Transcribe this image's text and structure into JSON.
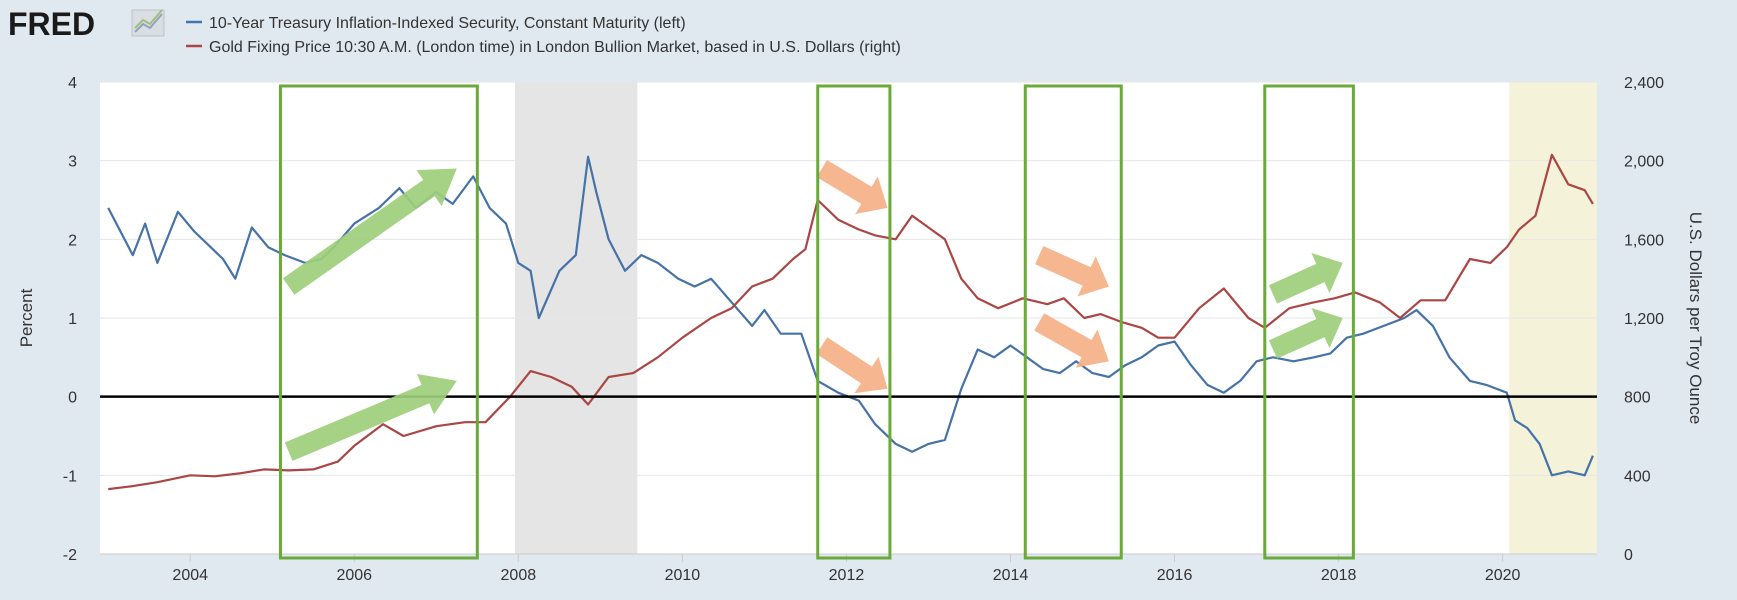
{
  "header": {
    "logo_text": "FRED",
    "legend": [
      {
        "label": "10-Year Treasury Inflation-Indexed Security, Constant Maturity (left)",
        "color": "#4572a7"
      },
      {
        "label": "Gold Fixing Price 10:30 A.M. (London time) in London Bullion Market, based in U.S. Dollars (right)",
        "color": "#aa4643"
      }
    ]
  },
  "chart_data": {
    "type": "line",
    "x_range": [
      2002.9,
      2021.15
    ],
    "x_ticks": [
      2004,
      2006,
      2008,
      2010,
      2012,
      2014,
      2016,
      2018,
      2020
    ],
    "left_axis": {
      "label": "Percent",
      "range": [
        -2,
        4
      ],
      "ticks": [
        -2,
        -1,
        0,
        1,
        2,
        3,
        4
      ]
    },
    "right_axis": {
      "label": "U.S. Dollars per Troy Ounce",
      "range": [
        0,
        2400
      ],
      "ticks": [
        0,
        400,
        800,
        1200,
        1600,
        2000,
        2400
      ],
      "tick_labels": [
        "0",
        "400",
        "800",
        "1,200",
        "1,600",
        "2,000",
        "2,400"
      ]
    },
    "zero_line": 0,
    "shaded_regions": [
      {
        "name": "recession-2008",
        "from": 2007.96,
        "to": 2009.45,
        "color": "#e5e5e5"
      },
      {
        "name": "recession-2020",
        "from": 2020.08,
        "to": 2021.15,
        "color": "#f4f3da"
      }
    ],
    "annotations": {
      "boxes": [
        {
          "from": 2005.1,
          "to": 2007.5,
          "color": "#6aaa3a"
        },
        {
          "from": 2011.65,
          "to": 2012.53,
          "color": "#6aaa3a"
        },
        {
          "from": 2014.18,
          "to": 2015.35,
          "color": "#6aaa3a"
        },
        {
          "from": 2017.1,
          "to": 2018.18,
          "color": "#6aaa3a"
        }
      ],
      "arrows": [
        {
          "from": [
            2005.2,
            1.4
          ],
          "to": [
            2007.25,
            2.9
          ],
          "color": "#9dce7b"
        },
        {
          "from": [
            2005.2,
            -0.7
          ],
          "to": [
            2007.25,
            0.2
          ],
          "color": "#9dce7b"
        },
        {
          "from": [
            2011.7,
            2.9
          ],
          "to": [
            2012.5,
            2.4
          ],
          "color": "#f5b087"
        },
        {
          "from": [
            2011.7,
            0.65
          ],
          "to": [
            2012.5,
            0.1
          ],
          "color": "#f5b087"
        },
        {
          "from": [
            2014.35,
            1.8
          ],
          "to": [
            2015.2,
            1.4
          ],
          "color": "#f5b087"
        },
        {
          "from": [
            2014.35,
            0.95
          ],
          "to": [
            2015.2,
            0.45
          ],
          "color": "#f5b087"
        },
        {
          "from": [
            2017.2,
            1.3
          ],
          "to": [
            2018.05,
            1.7
          ],
          "color": "#9dce7b"
        },
        {
          "from": [
            2017.2,
            0.6
          ],
          "to": [
            2018.05,
            1.0
          ],
          "color": "#9dce7b"
        }
      ]
    },
    "series": [
      {
        "name": "10-Year Treasury Inflation-Indexed Security, Constant Maturity",
        "axis": "left",
        "color": "#4572a7",
        "points": [
          [
            2003.0,
            2.4
          ],
          [
            2003.15,
            2.1
          ],
          [
            2003.3,
            1.8
          ],
          [
            2003.45,
            2.2
          ],
          [
            2003.6,
            1.7
          ],
          [
            2003.85,
            2.35
          ],
          [
            2004.05,
            2.1
          ],
          [
            2004.25,
            1.9
          ],
          [
            2004.4,
            1.75
          ],
          [
            2004.55,
            1.5
          ],
          [
            2004.75,
            2.15
          ],
          [
            2004.95,
            1.9
          ],
          [
            2005.15,
            1.8
          ],
          [
            2005.4,
            1.7
          ],
          [
            2005.6,
            1.75
          ],
          [
            2005.75,
            1.9
          ],
          [
            2006.0,
            2.2
          ],
          [
            2006.3,
            2.4
          ],
          [
            2006.55,
            2.65
          ],
          [
            2006.75,
            2.4
          ],
          [
            2007.0,
            2.6
          ],
          [
            2007.2,
            2.45
          ],
          [
            2007.45,
            2.8
          ],
          [
            2007.65,
            2.4
          ],
          [
            2007.85,
            2.2
          ],
          [
            2008.0,
            1.7
          ],
          [
            2008.15,
            1.6
          ],
          [
            2008.25,
            1.0
          ],
          [
            2008.5,
            1.6
          ],
          [
            2008.7,
            1.8
          ],
          [
            2008.85,
            3.05
          ],
          [
            2008.95,
            2.6
          ],
          [
            2009.1,
            2.0
          ],
          [
            2009.3,
            1.6
          ],
          [
            2009.5,
            1.8
          ],
          [
            2009.7,
            1.7
          ],
          [
            2009.95,
            1.5
          ],
          [
            2010.15,
            1.4
          ],
          [
            2010.35,
            1.5
          ],
          [
            2010.6,
            1.2
          ],
          [
            2010.85,
            0.9
          ],
          [
            2011.0,
            1.1
          ],
          [
            2011.2,
            0.8
          ],
          [
            2011.45,
            0.8
          ],
          [
            2011.65,
            0.2
          ],
          [
            2011.9,
            0.05
          ],
          [
            2012.15,
            -0.05
          ],
          [
            2012.35,
            -0.35
          ],
          [
            2012.6,
            -0.6
          ],
          [
            2012.8,
            -0.7
          ],
          [
            2013.0,
            -0.6
          ],
          [
            2013.2,
            -0.55
          ],
          [
            2013.4,
            0.1
          ],
          [
            2013.6,
            0.6
          ],
          [
            2013.8,
            0.5
          ],
          [
            2014.0,
            0.65
          ],
          [
            2014.2,
            0.5
          ],
          [
            2014.4,
            0.35
          ],
          [
            2014.6,
            0.3
          ],
          [
            2014.8,
            0.45
          ],
          [
            2015.0,
            0.3
          ],
          [
            2015.2,
            0.25
          ],
          [
            2015.4,
            0.4
          ],
          [
            2015.6,
            0.5
          ],
          [
            2015.8,
            0.65
          ],
          [
            2016.0,
            0.7
          ],
          [
            2016.2,
            0.4
          ],
          [
            2016.4,
            0.15
          ],
          [
            2016.6,
            0.05
          ],
          [
            2016.8,
            0.2
          ],
          [
            2017.0,
            0.45
          ],
          [
            2017.2,
            0.5
          ],
          [
            2017.45,
            0.45
          ],
          [
            2017.7,
            0.5
          ],
          [
            2017.9,
            0.55
          ],
          [
            2018.1,
            0.75
          ],
          [
            2018.3,
            0.8
          ],
          [
            2018.55,
            0.9
          ],
          [
            2018.8,
            1.0
          ],
          [
            2018.95,
            1.1
          ],
          [
            2019.15,
            0.9
          ],
          [
            2019.35,
            0.5
          ],
          [
            2019.6,
            0.2
          ],
          [
            2019.8,
            0.15
          ],
          [
            2020.05,
            0.05
          ],
          [
            2020.15,
            -0.3
          ],
          [
            2020.3,
            -0.4
          ],
          [
            2020.45,
            -0.6
          ],
          [
            2020.6,
            -1.0
          ],
          [
            2020.8,
            -0.95
          ],
          [
            2021.0,
            -1.0
          ],
          [
            2021.1,
            -0.75
          ]
        ]
      },
      {
        "name": "Gold Fixing Price 10:30 A.M. (London time) in London Bullion Market, based in U.S. Dollars",
        "axis": "right",
        "color": "#aa4643",
        "points": [
          [
            2003.0,
            330
          ],
          [
            2003.3,
            345
          ],
          [
            2003.6,
            365
          ],
          [
            2004.0,
            400
          ],
          [
            2004.3,
            395
          ],
          [
            2004.6,
            410
          ],
          [
            2004.9,
            430
          ],
          [
            2005.2,
            425
          ],
          [
            2005.5,
            430
          ],
          [
            2005.8,
            470
          ],
          [
            2006.0,
            550
          ],
          [
            2006.35,
            660
          ],
          [
            2006.6,
            600
          ],
          [
            2007.0,
            650
          ],
          [
            2007.35,
            670
          ],
          [
            2007.6,
            670
          ],
          [
            2007.9,
            800
          ],
          [
            2008.15,
            930
          ],
          [
            2008.4,
            900
          ],
          [
            2008.65,
            850
          ],
          [
            2008.85,
            760
          ],
          [
            2009.1,
            900
          ],
          [
            2009.4,
            920
          ],
          [
            2009.7,
            1000
          ],
          [
            2010.0,
            1100
          ],
          [
            2010.35,
            1200
          ],
          [
            2010.6,
            1250
          ],
          [
            2010.85,
            1360
          ],
          [
            2011.1,
            1400
          ],
          [
            2011.35,
            1500
          ],
          [
            2011.5,
            1550
          ],
          [
            2011.65,
            1800
          ],
          [
            2011.9,
            1700
          ],
          [
            2012.15,
            1650
          ],
          [
            2012.35,
            1620
          ],
          [
            2012.6,
            1600
          ],
          [
            2012.8,
            1720
          ],
          [
            2013.0,
            1660
          ],
          [
            2013.2,
            1600
          ],
          [
            2013.4,
            1400
          ],
          [
            2013.6,
            1300
          ],
          [
            2013.85,
            1250
          ],
          [
            2014.15,
            1300
          ],
          [
            2014.45,
            1270
          ],
          [
            2014.65,
            1300
          ],
          [
            2014.9,
            1200
          ],
          [
            2015.1,
            1220
          ],
          [
            2015.35,
            1180
          ],
          [
            2015.6,
            1150
          ],
          [
            2015.8,
            1100
          ],
          [
            2016.0,
            1100
          ],
          [
            2016.3,
            1250
          ],
          [
            2016.6,
            1350
          ],
          [
            2016.9,
            1200
          ],
          [
            2017.1,
            1150
          ],
          [
            2017.4,
            1250
          ],
          [
            2017.7,
            1280
          ],
          [
            2017.95,
            1300
          ],
          [
            2018.2,
            1330
          ],
          [
            2018.5,
            1280
          ],
          [
            2018.75,
            1200
          ],
          [
            2019.0,
            1290
          ],
          [
            2019.3,
            1290
          ],
          [
            2019.6,
            1500
          ],
          [
            2019.85,
            1480
          ],
          [
            2020.05,
            1560
          ],
          [
            2020.2,
            1650
          ],
          [
            2020.4,
            1720
          ],
          [
            2020.6,
            2030
          ],
          [
            2020.8,
            1880
          ],
          [
            2021.0,
            1850
          ],
          [
            2021.1,
            1780
          ]
        ]
      }
    ]
  }
}
